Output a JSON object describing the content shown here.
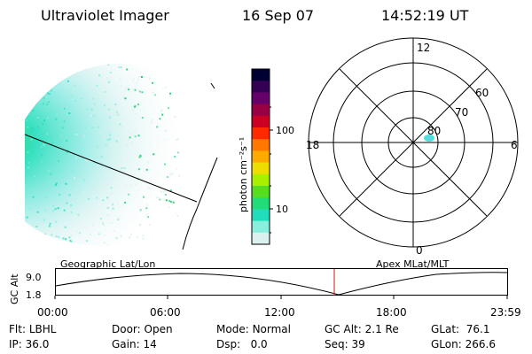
{
  "header": {
    "instrument": "Ultraviolet Imager",
    "date": "16 Sep 07",
    "time": "14:52:19 UT"
  },
  "colorbar": {
    "unit_label": "photon cm⁻²s⁻¹",
    "ticks": [
      "100",
      "10"
    ],
    "colors": [
      "#000033",
      "#330055",
      "#66006a",
      "#990044",
      "#cc0022",
      "#ff2a00",
      "#ff7700",
      "#ffaa00",
      "#eedd00",
      "#aaee00",
      "#55dd22",
      "#22dd77",
      "#22ddbb",
      "#88eedd",
      "#ddf0f0"
    ]
  },
  "polar": {
    "mlt_labels": {
      "top": "12",
      "bottom": "0",
      "left": "18",
      "right": "6"
    },
    "lat_labels": [
      "60",
      "70",
      "80"
    ]
  },
  "altitude_plot": {
    "left_title": "Geographic Lat/Lon",
    "right_title": "Apex MLat/MLT",
    "ylabel": "GC Alt",
    "yticks": [
      "9.0",
      "1.8"
    ],
    "xticks": [
      "00:00",
      "06:00",
      "12:00",
      "18:00",
      "23:59"
    ],
    "marker_color": "#d01010"
  },
  "status": {
    "flt_label": "Flt:",
    "flt_value": "LBHL",
    "ip_label": "IP:",
    "ip_value": "36.0",
    "door_label": "Door:",
    "door_value": "Open",
    "gain_label": "Gain:",
    "gain_value": "14",
    "mode_label": "Mode:",
    "mode_value": "Normal",
    "dsp_label": "Dsp:",
    "dsp_value": "0.0",
    "gcalt_label": "GC Alt:",
    "gcalt_value": "2.1 Re",
    "seq_label": "Seq:",
    "seq_value": "39",
    "glat_label": "GLat:",
    "glat_value": "76.1",
    "glon_label": "GLon:",
    "glon_value": "266.6"
  }
}
